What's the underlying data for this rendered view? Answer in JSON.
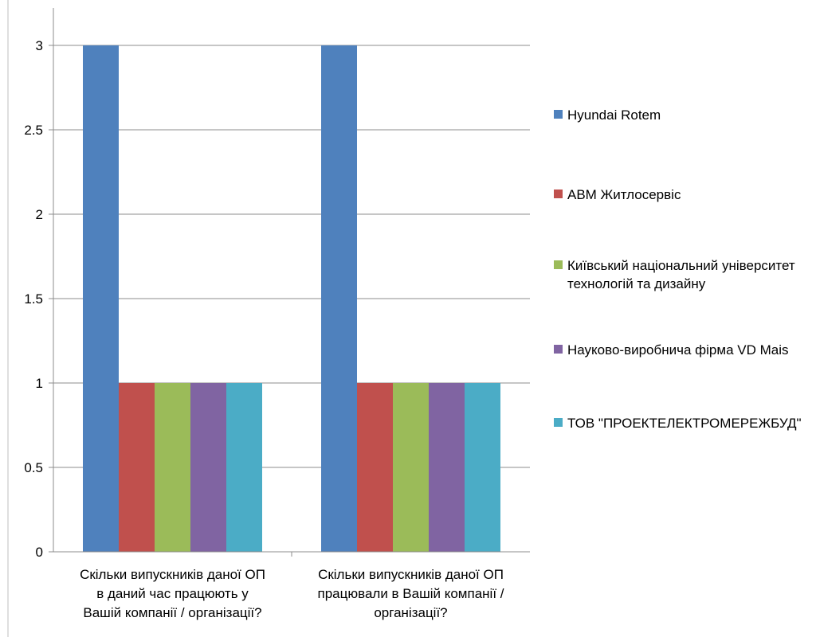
{
  "chart_data": {
    "type": "bar",
    "categories": [
      "Скільки випускників даної ОП в даний час працюють у Вашій компанії / організації?",
      "Скільки випускників даної ОП працювали в Вашій компанії / організації?"
    ],
    "category_lines": [
      [
        "Скільки випускників даної ОП",
        "в даний час працюють у",
        "Вашій компанії / організації?"
      ],
      [
        "Скільки випускників даної ОП",
        "працювали в Вашій компанії /",
        "організації?"
      ]
    ],
    "series": [
      {
        "name": "Hyundai Rotem",
        "values": [
          3,
          3
        ],
        "color": "#4F81BD"
      },
      {
        "name": "АВМ Житлосервіс",
        "values": [
          1,
          1
        ],
        "color": "#C0504D"
      },
      {
        "name": "Київський національний університет технологій та дизайну",
        "values": [
          1,
          1
        ],
        "color": "#9BBB59"
      },
      {
        "name": "Науково-виробнича фірма VD Mais",
        "values": [
          1,
          1
        ],
        "color": "#8064A2"
      },
      {
        "name": "ТОВ \"ПРОЕКТЕЛЕКТРОМЕРЕЖБУД\"",
        "values": [
          1,
          1
        ],
        "color": "#4BACC6"
      }
    ],
    "yticks": [
      "0",
      "0.5",
      "1",
      "1.5",
      "2",
      "2.5",
      "3"
    ],
    "ylim": [
      0,
      3
    ],
    "grid": true,
    "legend_position": "right",
    "title": "",
    "xlabel": "",
    "ylabel": ""
  }
}
